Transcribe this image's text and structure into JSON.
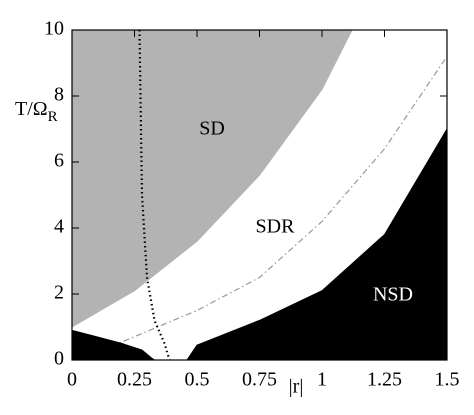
{
  "chart_data": {
    "type": "region",
    "xlabel": "|r|",
    "ylabel": "T/Ω",
    "ylabel_sub": "R",
    "annotations": [
      "SD",
      "SDR",
      "NSD"
    ],
    "xlim": [
      0,
      1.5
    ],
    "xticks": [
      0,
      0.25,
      0.5,
      0.75,
      1,
      1.25,
      1.5
    ],
    "ylim": [
      0,
      10
    ],
    "yticks": [
      0,
      2,
      4,
      6,
      8,
      10
    ],
    "series": [
      {
        "style": "fill",
        "fill_to": "top",
        "color": "#b3b3b3",
        "x": [
          0,
          0.25,
          0.5,
          0.75,
          1,
          1.12
        ],
        "values": [
          1,
          2.1,
          3.6,
          5.6,
          8.2,
          10
        ]
      },
      {
        "style": "dashdot",
        "color": "#999999",
        "x": [
          0.07,
          0.1,
          0.2,
          0.5,
          0.75,
          1,
          1.25,
          1.5
        ],
        "values": [
          0,
          0.3,
          0.55,
          1.5,
          2.5,
          4.2,
          6.4,
          9.2
        ]
      },
      {
        "style": "fill",
        "fill_to": "bottom-right",
        "color": "#000000",
        "x": [
          0.46,
          0.5,
          0.75,
          1,
          1.25,
          1.5
        ],
        "values": [
          0,
          0.45,
          1.2,
          2.1,
          3.8,
          7
        ]
      },
      {
        "style": "fill",
        "fill_to": "bottom-left",
        "color": "#000000",
        "x": [
          0,
          0.1,
          0.2,
          0.28,
          0.32,
          0.33
        ],
        "values": [
          0.9,
          0.7,
          0.5,
          0.3,
          0.05,
          0
        ]
      },
      {
        "style": "dotted",
        "color": "#000000",
        "x": [
          0.27,
          0.28,
          0.3,
          0.33,
          0.37,
          0.39
        ],
        "values": [
          10,
          5,
          2.5,
          1.2,
          0.5,
          0
        ]
      }
    ]
  }
}
